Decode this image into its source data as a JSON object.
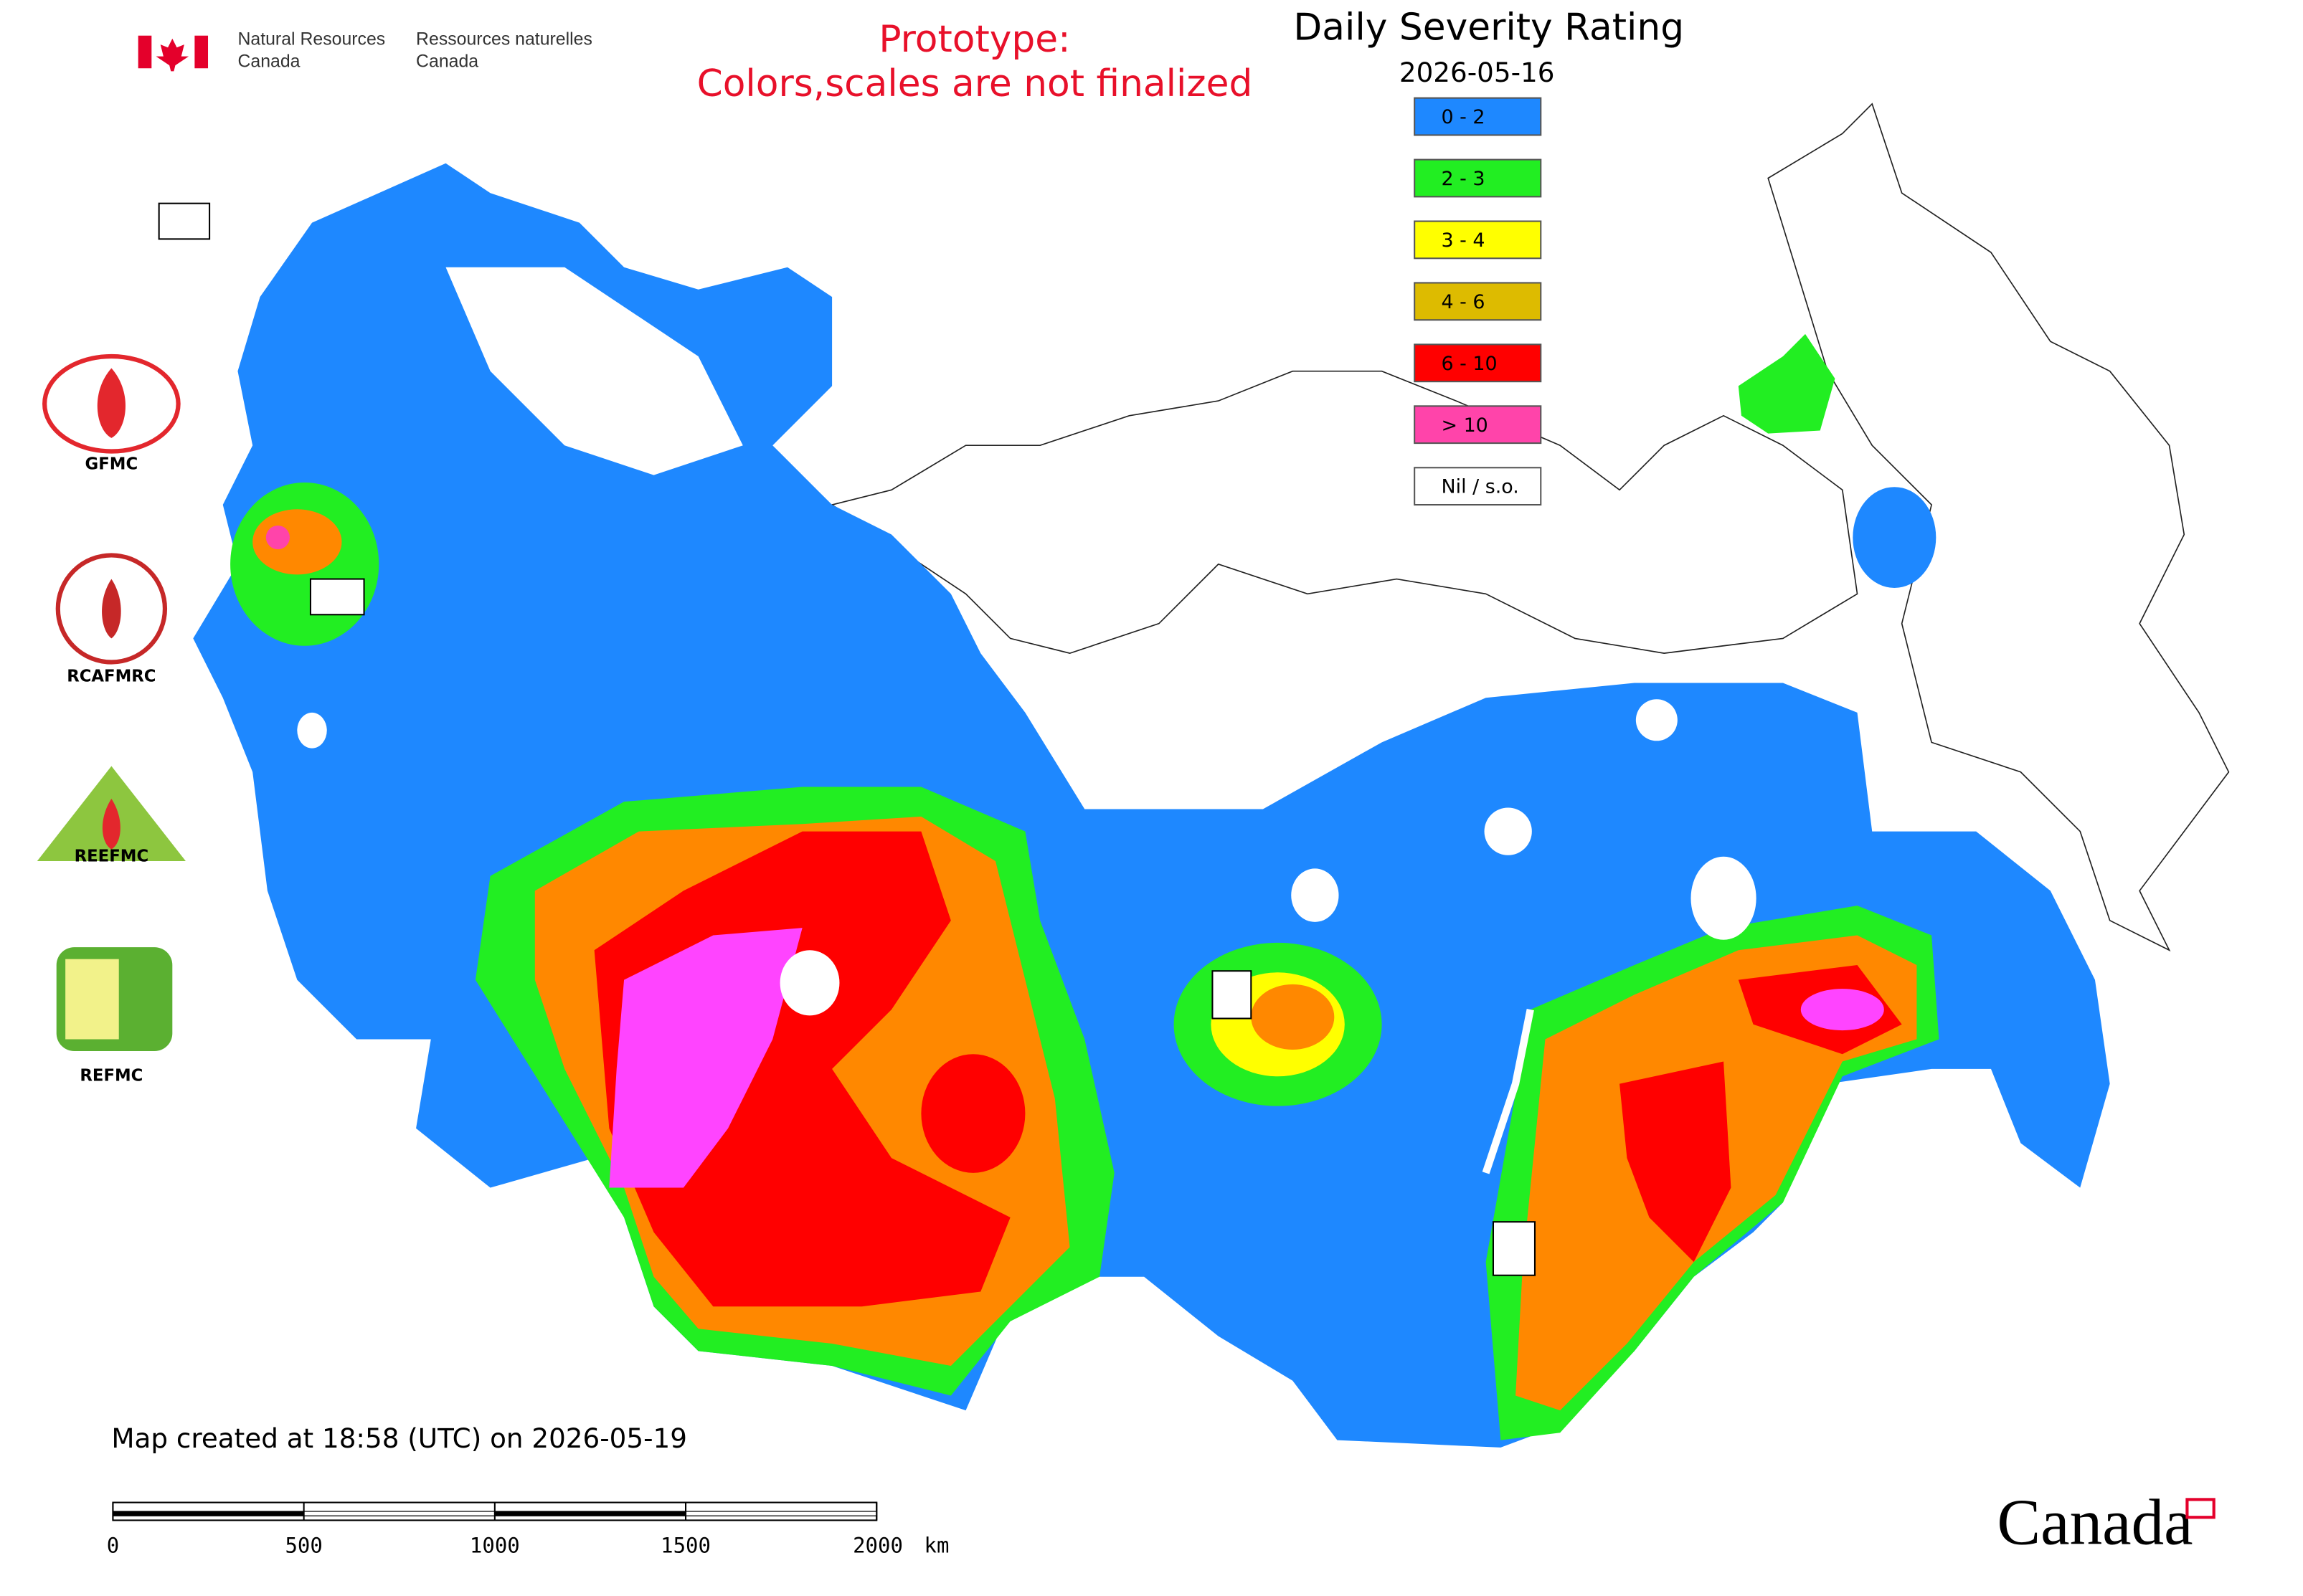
{
  "header": {
    "agency_en": [
      "Natural Resources",
      "Canada"
    ],
    "agency_fr": [
      "Ressources naturelles",
      "Canada"
    ],
    "notice": [
      "Prototype:",
      "Colors,scales are not finalized"
    ]
  },
  "map": {
    "title": "Daily Severity Rating",
    "date": "2026-05-16",
    "legend": [
      {
        "label": "0 - 2",
        "color": "#1e88ff"
      },
      {
        "label": "2 - 3",
        "color": "#22ee22"
      },
      {
        "label": "3 - 4",
        "color": "#ffff00"
      },
      {
        "label": "4 - 6",
        "color": "#ddbb00"
      },
      {
        "label": "6 - 10",
        "color": "#ff0000"
      },
      {
        "label": "> 10",
        "color": "#ff44aa"
      },
      {
        "label": "Nil / s.o.",
        "color": "#ffffff"
      }
    ],
    "created": "Map created at 18:58 (UTC) on 2026-05-19",
    "scale_bar": {
      "ticks": [
        0,
        500,
        1000,
        1500,
        2000
      ],
      "unit": "km"
    }
  },
  "logos": [
    "GFMC",
    "RCAFMRC",
    "REEFMC",
    "REFMC"
  ],
  "wordmark": "Canada"
}
